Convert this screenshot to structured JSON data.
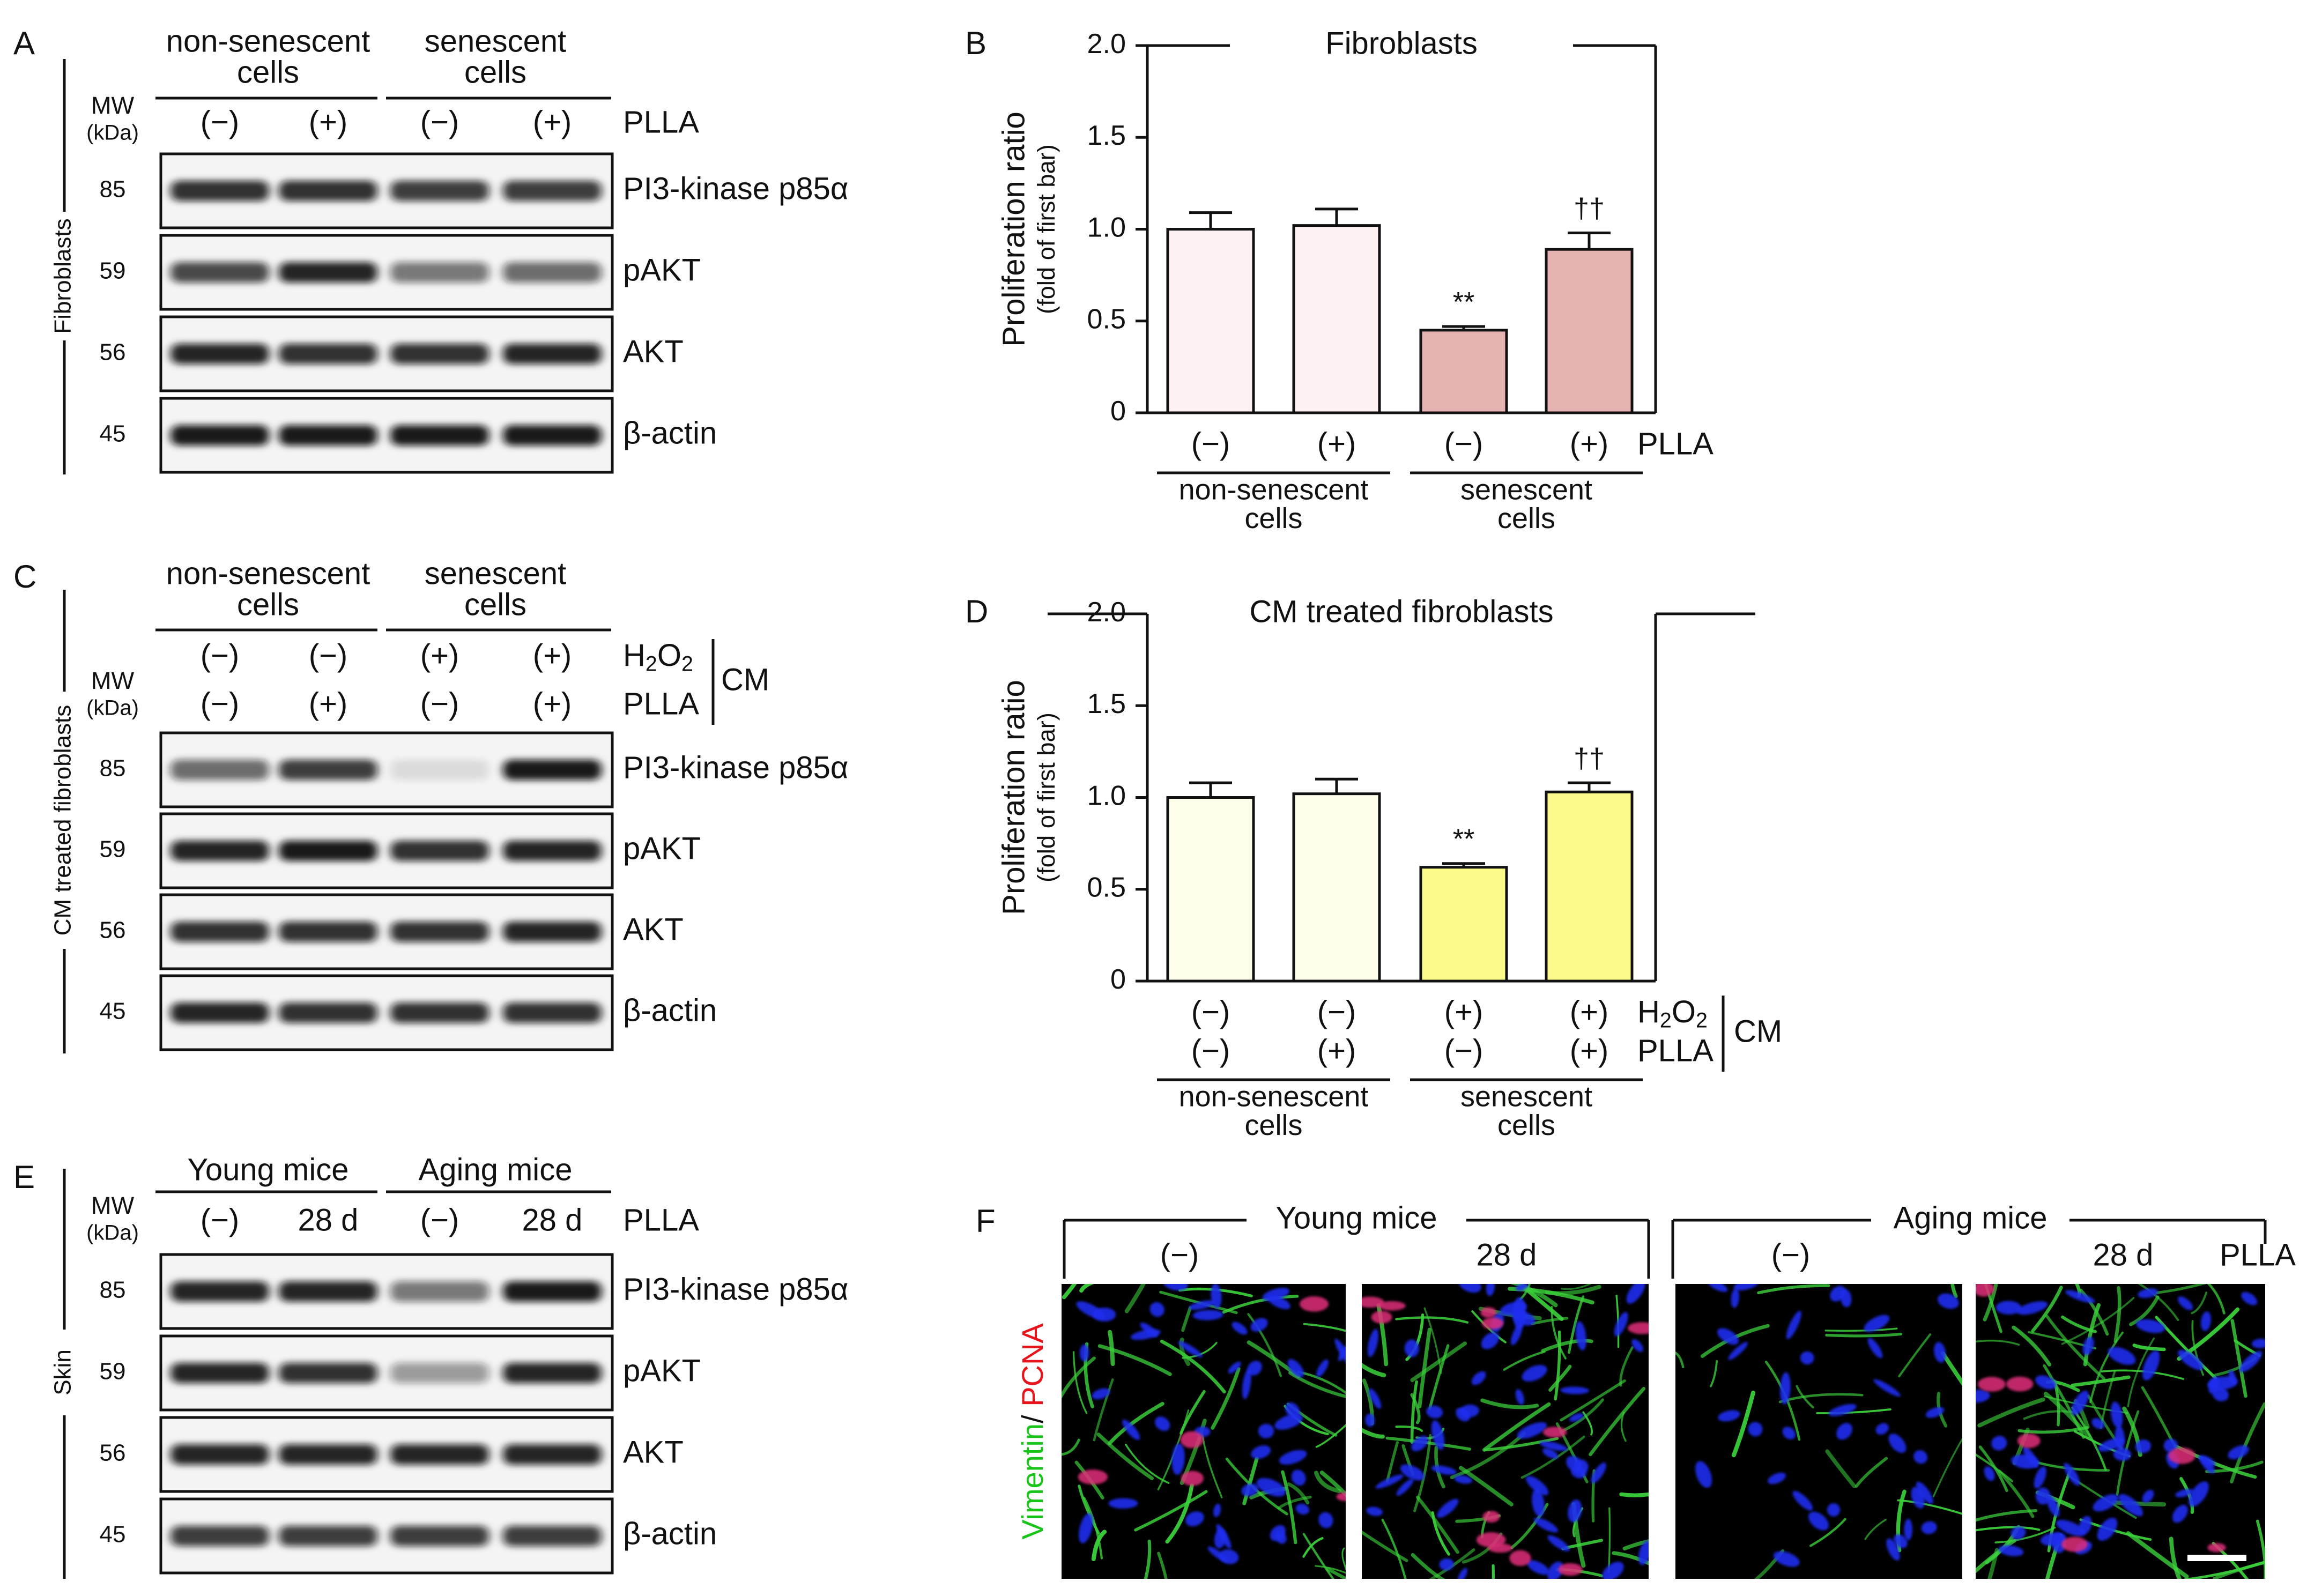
{
  "panel_letters": [
    "A",
    "B",
    "C",
    "D",
    "E",
    "F"
  ],
  "panel_A": {
    "mw_label": "MW",
    "kda_label": "(kDa)",
    "groups": [
      "non-senescent\ncells",
      "senescent\ncells"
    ],
    "treat_label": "PLLA",
    "lanes": [
      "(−)",
      "(+)",
      "(−)",
      "(+)"
    ],
    "side_label": "Fibroblasts",
    "rows": [
      {
        "mw": "85",
        "protein": "PI3-kinase p85α",
        "intensity": [
          0.85,
          0.85,
          0.8,
          0.8
        ]
      },
      {
        "mw": "59",
        "protein": "pAKT",
        "intensity": [
          0.75,
          0.9,
          0.55,
          0.6
        ]
      },
      {
        "mw": "56",
        "protein": "AKT",
        "intensity": [
          0.9,
          0.85,
          0.85,
          0.9
        ]
      },
      {
        "mw": "45",
        "protein": "β-actin",
        "intensity": [
          0.95,
          0.95,
          0.95,
          0.95
        ]
      }
    ]
  },
  "panel_C": {
    "mw_label": "MW",
    "kda_label": "(kDa)",
    "groups": [
      "non-senescent\ncells",
      "senescent\ncells"
    ],
    "treat1_label": "H2O2",
    "treat2_label": "PLLA",
    "bracket_label": "CM",
    "lanes1": [
      "(−)",
      "(−)",
      "(+)",
      "(+)"
    ],
    "lanes2": [
      "(−)",
      "(+)",
      "(−)",
      "(+)"
    ],
    "side_label": "CM treated fibroblasts",
    "rows": [
      {
        "mw": "85",
        "protein": "PI3-kinase p85α",
        "intensity": [
          0.6,
          0.8,
          0.1,
          0.95
        ]
      },
      {
        "mw": "59",
        "protein": "pAKT",
        "intensity": [
          0.9,
          0.95,
          0.85,
          0.9
        ]
      },
      {
        "mw": "56",
        "protein": "AKT",
        "intensity": [
          0.85,
          0.85,
          0.85,
          0.9
        ]
      },
      {
        "mw": "45",
        "protein": "β-actin",
        "intensity": [
          0.9,
          0.85,
          0.85,
          0.85
        ]
      }
    ]
  },
  "panel_E": {
    "mw_label": "MW",
    "kda_label": "(kDa)",
    "groups": [
      "Young mice",
      "Aging mice"
    ],
    "treat_label": "PLLA",
    "lanes": [
      "(−)",
      "28 d",
      "(−)",
      "28 d"
    ],
    "side_label": "Skin",
    "rows": [
      {
        "mw": "85",
        "protein": "PI3-kinase p85α",
        "intensity": [
          0.9,
          0.9,
          0.55,
          0.95
        ]
      },
      {
        "mw": "59",
        "protein": "pAKT",
        "intensity": [
          0.9,
          0.85,
          0.4,
          0.9
        ]
      },
      {
        "mw": "56",
        "protein": "AKT",
        "intensity": [
          0.9,
          0.9,
          0.9,
          0.9
        ]
      },
      {
        "mw": "45",
        "protein": "β-actin",
        "intensity": [
          0.8,
          0.8,
          0.8,
          0.8
        ]
      }
    ]
  },
  "chart_data": [
    {
      "type": "bar",
      "panel": "B",
      "title": "Fibroblasts",
      "ylabel": "Proliferation ratio",
      "ylabel2": "(fold of first bar)",
      "ylim": [
        0,
        2.0
      ],
      "yticks": [
        "0",
        "0.5",
        "1.0",
        "1.5",
        "2.0"
      ],
      "values": [
        1.0,
        1.02,
        0.45,
        0.89
      ],
      "errors": [
        0.09,
        0.09,
        0.02,
        0.09
      ],
      "colors": [
        "#fdf1f1",
        "#fdf1f1",
        "#e6b3b3",
        "#e6b3b3"
      ],
      "annotations": [
        "",
        "",
        "**",
        "††"
      ],
      "lanes": [
        [
          "(−)",
          "(+)",
          "(−)",
          "(+)"
        ]
      ],
      "lane_labels": [
        "PLLA"
      ],
      "groups": [
        "non-senescent\ncells",
        "senescent\ncells"
      ]
    },
    {
      "type": "bar",
      "panel": "D",
      "title": "CM treated fibroblasts",
      "ylabel": "Proliferation ratio",
      "ylabel2": "(fold of first bar)",
      "ylim": [
        0,
        2.0
      ],
      "yticks": [
        "0",
        "0.5",
        "1.0",
        "1.5",
        "2.0"
      ],
      "values": [
        1.0,
        1.02,
        0.62,
        1.03
      ],
      "errors": [
        0.08,
        0.08,
        0.02,
        0.05
      ],
      "colors": [
        "#fefeea",
        "#fefeea",
        "#fbfb8c",
        "#fbfb8c"
      ],
      "annotations": [
        "",
        "",
        "**",
        "††"
      ],
      "lanes": [
        [
          "(−)",
          "(−)",
          "(+)",
          "(+)"
        ],
        [
          "(−)",
          "(+)",
          "(−)",
          "(+)"
        ]
      ],
      "lane_labels": [
        "H2O2",
        "PLLA"
      ],
      "bracket_label": "CM",
      "groups": [
        "non-senescent\ncells",
        "senescent\ncells"
      ]
    }
  ],
  "panel_F": {
    "group1": "Young mice",
    "group2": "Aging mice",
    "lanes": [
      "(−)",
      "28 d",
      "(−)",
      "28 d"
    ],
    "treat_label": "PLLA",
    "stain_green": "Vimentin",
    "stain_sep": "/ ",
    "stain_red": "PCNA",
    "density": [
      0.6,
      0.75,
      0.25,
      0.8
    ],
    "red_fraction": [
      0.08,
      0.2,
      0.0,
      0.12
    ]
  }
}
